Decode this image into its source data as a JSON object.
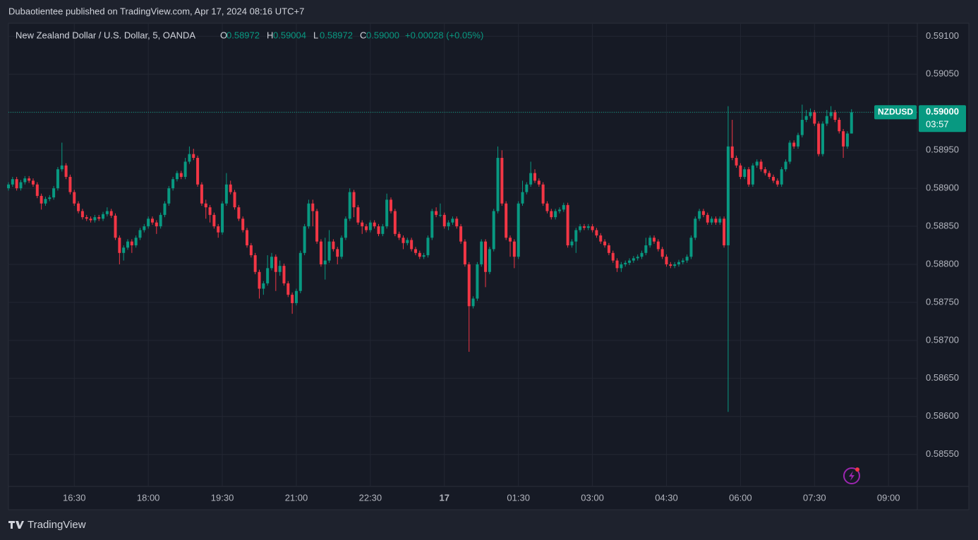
{
  "header": {
    "published": "Dubaotientee published on TradingView.com, Apr 17, 2024 08:16 UTC+7"
  },
  "footer": {
    "brand": "TradingView"
  },
  "chart_data": {
    "type": "candlestick",
    "title": "New Zealand Dollar / U.S. Dollar, 5, OANDA",
    "ohlc_legend": [
      {
        "key": "O",
        "value": "0.58972"
      },
      {
        "key": "H",
        "value": "0.59004"
      },
      {
        "key": "L",
        "value": "0.58972"
      },
      {
        "key": "C",
        "value": "0.59000"
      }
    ],
    "change": "+0.00028 (+0.05%)",
    "symbol": "NZDUSD",
    "last_price": {
      "value": 0.59,
      "label": "0.59000"
    },
    "countdown": "03:57",
    "up_color": "#089981",
    "down_color": "#f23645",
    "grid": true,
    "ylim": [
      0.58508,
      0.59117
    ],
    "yticks": [
      {
        "value": 0.591,
        "label": "0.59100"
      },
      {
        "value": 0.5905,
        "label": "0.59050"
      },
      {
        "value": 0.59,
        "label": "0.59000"
      },
      {
        "value": 0.5895,
        "label": "0.58950"
      },
      {
        "value": 0.589,
        "label": "0.58900"
      },
      {
        "value": 0.5885,
        "label": "0.58850"
      },
      {
        "value": 0.588,
        "label": "0.58800"
      },
      {
        "value": 0.5875,
        "label": "0.58750"
      },
      {
        "value": 0.587,
        "label": "0.58700"
      },
      {
        "value": 0.5865,
        "label": "0.58650"
      },
      {
        "value": 0.586,
        "label": "0.58600"
      },
      {
        "value": 0.5855,
        "label": "0.58550"
      }
    ],
    "xlim": [
      0,
      221
    ],
    "xticks": [
      {
        "value": 16,
        "label": "16:30"
      },
      {
        "value": 34,
        "label": "18:00"
      },
      {
        "value": 52,
        "label": "19:30"
      },
      {
        "value": 70,
        "label": "21:00"
      },
      {
        "value": 88,
        "label": "22:30"
      },
      {
        "value": 106,
        "label": "17"
      },
      {
        "value": 124,
        "label": "01:30"
      },
      {
        "value": 142,
        "label": "03:00"
      },
      {
        "value": 160,
        "label": "04:30"
      },
      {
        "value": 178,
        "label": "06:00"
      },
      {
        "value": 196,
        "label": "07:30"
      },
      {
        "value": 214,
        "label": "09:00"
      }
    ],
    "candles": [
      [
        0.589,
        0.58908,
        0.58897,
        0.58905
      ],
      [
        0.58905,
        0.58915,
        0.58902,
        0.58912
      ],
      [
        0.58912,
        0.58915,
        0.58897,
        0.589
      ],
      [
        0.589,
        0.58911,
        0.58897,
        0.58908
      ],
      [
        0.58908,
        0.58916,
        0.58905,
        0.58913
      ],
      [
        0.58913,
        0.58916,
        0.58907,
        0.5891
      ],
      [
        0.5891,
        0.58913,
        0.58902,
        0.58905
      ],
      [
        0.58905,
        0.58908,
        0.58887,
        0.5889
      ],
      [
        0.5889,
        0.58893,
        0.58872,
        0.5888
      ],
      [
        0.5888,
        0.58889,
        0.58877,
        0.58886
      ],
      [
        0.58886,
        0.58891,
        0.58883,
        0.58888
      ],
      [
        0.58888,
        0.58903,
        0.58885,
        0.589
      ],
      [
        0.589,
        0.58928,
        0.58897,
        0.58925
      ],
      [
        0.58925,
        0.5896,
        0.58922,
        0.5893
      ],
      [
        0.5893,
        0.58933,
        0.58912,
        0.58915
      ],
      [
        0.58915,
        0.58918,
        0.58892,
        0.58895
      ],
      [
        0.58895,
        0.58898,
        0.58877,
        0.5888
      ],
      [
        0.5888,
        0.58883,
        0.58867,
        0.5887
      ],
      [
        0.5887,
        0.58873,
        0.58859,
        0.58862
      ],
      [
        0.58862,
        0.58865,
        0.58857,
        0.5886
      ],
      [
        0.5886,
        0.58863,
        0.58855,
        0.58858
      ],
      [
        0.58858,
        0.58865,
        0.58855,
        0.58862
      ],
      [
        0.58862,
        0.58865,
        0.58857,
        0.5886
      ],
      [
        0.5886,
        0.58869,
        0.58857,
        0.58866
      ],
      [
        0.58866,
        0.58875,
        0.58863,
        0.5887
      ],
      [
        0.5887,
        0.58873,
        0.58861,
        0.58864
      ],
      [
        0.58864,
        0.58867,
        0.58832,
        0.58835
      ],
      [
        0.58835,
        0.58838,
        0.588,
        0.58815
      ],
      [
        0.58815,
        0.58825,
        0.58805,
        0.58822
      ],
      [
        0.58822,
        0.58833,
        0.58819,
        0.5883
      ],
      [
        0.5883,
        0.58833,
        0.58815,
        0.58825
      ],
      [
        0.58825,
        0.58838,
        0.58822,
        0.58835
      ],
      [
        0.58835,
        0.58848,
        0.58832,
        0.58845
      ],
      [
        0.58845,
        0.58853,
        0.58842,
        0.5885
      ],
      [
        0.5885,
        0.58863,
        0.58847,
        0.5886
      ],
      [
        0.5886,
        0.58863,
        0.58852,
        0.58855
      ],
      [
        0.58855,
        0.58858,
        0.5884,
        0.5885
      ],
      [
        0.5885,
        0.58868,
        0.58847,
        0.58865
      ],
      [
        0.58865,
        0.58883,
        0.58862,
        0.5888
      ],
      [
        0.5888,
        0.58903,
        0.58877,
        0.589
      ],
      [
        0.589,
        0.58915,
        0.58897,
        0.58912
      ],
      [
        0.58912,
        0.58923,
        0.58909,
        0.5892
      ],
      [
        0.5892,
        0.58923,
        0.58912,
        0.58915
      ],
      [
        0.58915,
        0.5894,
        0.58912,
        0.58935
      ],
      [
        0.58935,
        0.58955,
        0.58932,
        0.58945
      ],
      [
        0.58945,
        0.58952,
        0.58937,
        0.5894
      ],
      [
        0.5894,
        0.58943,
        0.58902,
        0.58905
      ],
      [
        0.58905,
        0.58908,
        0.58877,
        0.5888
      ],
      [
        0.5888,
        0.58885,
        0.5886,
        0.58875
      ],
      [
        0.58875,
        0.58878,
        0.58855,
        0.58865
      ],
      [
        0.58865,
        0.58868,
        0.58847,
        0.5885
      ],
      [
        0.5885,
        0.58853,
        0.58835,
        0.58842
      ],
      [
        0.58842,
        0.58883,
        0.58839,
        0.5888
      ],
      [
        0.5888,
        0.5892,
        0.58877,
        0.58905
      ],
      [
        0.58905,
        0.5891,
        0.58892,
        0.58895
      ],
      [
        0.58895,
        0.58898,
        0.58872,
        0.58875
      ],
      [
        0.58875,
        0.58878,
        0.58857,
        0.5886
      ],
      [
        0.5886,
        0.58863,
        0.58842,
        0.58845
      ],
      [
        0.58845,
        0.58848,
        0.58822,
        0.58825
      ],
      [
        0.58825,
        0.58828,
        0.58809,
        0.58812
      ],
      [
        0.58812,
        0.58815,
        0.58787,
        0.5879
      ],
      [
        0.5879,
        0.58793,
        0.58755,
        0.58768
      ],
      [
        0.58768,
        0.58778,
        0.5876,
        0.58775
      ],
      [
        0.58775,
        0.58812,
        0.58772,
        0.58795
      ],
      [
        0.58795,
        0.58815,
        0.58792,
        0.5881
      ],
      [
        0.5881,
        0.58813,
        0.58765,
        0.5879
      ],
      [
        0.5879,
        0.58805,
        0.58785,
        0.58798
      ],
      [
        0.58798,
        0.58801,
        0.58772,
        0.58775
      ],
      [
        0.58775,
        0.58778,
        0.58757,
        0.5876
      ],
      [
        0.5876,
        0.58763,
        0.58735,
        0.58749
      ],
      [
        0.58749,
        0.58768,
        0.58746,
        0.58765
      ],
      [
        0.58765,
        0.58818,
        0.58762,
        0.58815
      ],
      [
        0.58815,
        0.58853,
        0.58812,
        0.5885
      ],
      [
        0.5885,
        0.58885,
        0.58847,
        0.5888
      ],
      [
        0.5888,
        0.58885,
        0.5885,
        0.5887
      ],
      [
        0.5887,
        0.58873,
        0.58827,
        0.5883
      ],
      [
        0.5883,
        0.58833,
        0.58797,
        0.588
      ],
      [
        0.588,
        0.58835,
        0.5878,
        0.58805
      ],
      [
        0.58805,
        0.58845,
        0.58802,
        0.5883
      ],
      [
        0.5883,
        0.58833,
        0.58817,
        0.5882
      ],
      [
        0.5882,
        0.58823,
        0.588,
        0.5881
      ],
      [
        0.5881,
        0.58838,
        0.58807,
        0.58835
      ],
      [
        0.58835,
        0.58863,
        0.58832,
        0.5886
      ],
      [
        0.5886,
        0.589,
        0.58857,
        0.58895
      ],
      [
        0.58895,
        0.58898,
        0.58862,
        0.58875
      ],
      [
        0.58875,
        0.58878,
        0.58852,
        0.58855
      ],
      [
        0.58855,
        0.58858,
        0.5884,
        0.5885
      ],
      [
        0.5885,
        0.58853,
        0.58842,
        0.58845
      ],
      [
        0.58845,
        0.58858,
        0.58842,
        0.58855
      ],
      [
        0.58855,
        0.58858,
        0.58847,
        0.5885
      ],
      [
        0.5885,
        0.58853,
        0.58837,
        0.5884
      ],
      [
        0.5884,
        0.58853,
        0.58837,
        0.5885
      ],
      [
        0.5885,
        0.58893,
        0.58847,
        0.58885
      ],
      [
        0.58885,
        0.58888,
        0.58867,
        0.5887
      ],
      [
        0.5887,
        0.58873,
        0.58837,
        0.5884
      ],
      [
        0.5884,
        0.58843,
        0.58832,
        0.58835
      ],
      [
        0.58835,
        0.58838,
        0.5882,
        0.58828
      ],
      [
        0.58828,
        0.58835,
        0.58825,
        0.58832
      ],
      [
        0.58832,
        0.58835,
        0.58817,
        0.5882
      ],
      [
        0.5882,
        0.58823,
        0.58812,
        0.58815
      ],
      [
        0.58815,
        0.58818,
        0.58807,
        0.5881
      ],
      [
        0.5881,
        0.58815,
        0.58807,
        0.58812
      ],
      [
        0.58812,
        0.58838,
        0.58809,
        0.58835
      ],
      [
        0.58835,
        0.58873,
        0.58832,
        0.5887
      ],
      [
        0.5887,
        0.58875,
        0.58862,
        0.58865
      ],
      [
        0.58865,
        0.5888,
        0.58862,
        0.58865
      ],
      [
        0.58865,
        0.58868,
        0.58847,
        0.5885
      ],
      [
        0.5885,
        0.58858,
        0.58845,
        0.58855
      ],
      [
        0.58855,
        0.58863,
        0.58852,
        0.5886
      ],
      [
        0.5886,
        0.58863,
        0.58847,
        0.5885
      ],
      [
        0.5885,
        0.58853,
        0.58827,
        0.5883
      ],
      [
        0.5883,
        0.58833,
        0.58797,
        0.588
      ],
      [
        0.588,
        0.58803,
        0.58685,
        0.58745
      ],
      [
        0.58745,
        0.58758,
        0.58742,
        0.58755
      ],
      [
        0.58755,
        0.58803,
        0.58752,
        0.588
      ],
      [
        0.588,
        0.58833,
        0.58797,
        0.5883
      ],
      [
        0.5883,
        0.58833,
        0.5877,
        0.5879
      ],
      [
        0.5879,
        0.58823,
        0.58787,
        0.5882
      ],
      [
        0.5882,
        0.58873,
        0.58817,
        0.5887
      ],
      [
        0.5887,
        0.58955,
        0.58867,
        0.5894
      ],
      [
        0.5894,
        0.5895,
        0.58877,
        0.5888
      ],
      [
        0.5888,
        0.58883,
        0.58832,
        0.58835
      ],
      [
        0.58835,
        0.58838,
        0.5881,
        0.5883
      ],
      [
        0.5883,
        0.58833,
        0.58795,
        0.5881
      ],
      [
        0.5881,
        0.58883,
        0.58807,
        0.5888
      ],
      [
        0.5888,
        0.5891,
        0.58877,
        0.58895
      ],
      [
        0.58895,
        0.58908,
        0.58892,
        0.58905
      ],
      [
        0.58905,
        0.58935,
        0.58902,
        0.5892
      ],
      [
        0.5892,
        0.58925,
        0.58907,
        0.5891
      ],
      [
        0.5891,
        0.58913,
        0.58902,
        0.58905
      ],
      [
        0.58905,
        0.58908,
        0.58877,
        0.5888
      ],
      [
        0.5888,
        0.58883,
        0.58867,
        0.5887
      ],
      [
        0.5887,
        0.58873,
        0.58859,
        0.58862
      ],
      [
        0.58862,
        0.58873,
        0.58859,
        0.5887
      ],
      [
        0.5887,
        0.58875,
        0.58867,
        0.58872
      ],
      [
        0.58872,
        0.58881,
        0.58869,
        0.58878
      ],
      [
        0.58878,
        0.58881,
        0.58822,
        0.58825
      ],
      [
        0.58825,
        0.58833,
        0.58822,
        0.5883
      ],
      [
        0.5883,
        0.58848,
        0.58815,
        0.58845
      ],
      [
        0.58845,
        0.58853,
        0.58842,
        0.5885
      ],
      [
        0.5885,
        0.58853,
        0.58845,
        0.58848
      ],
      [
        0.58848,
        0.58853,
        0.58845,
        0.5885
      ],
      [
        0.5885,
        0.58853,
        0.58842,
        0.58845
      ],
      [
        0.58845,
        0.58848,
        0.58835,
        0.58838
      ],
      [
        0.58838,
        0.58841,
        0.58827,
        0.5883
      ],
      [
        0.5883,
        0.58833,
        0.58822,
        0.58825
      ],
      [
        0.58825,
        0.58828,
        0.58812,
        0.58815
      ],
      [
        0.58815,
        0.58818,
        0.58802,
        0.58805
      ],
      [
        0.58805,
        0.58808,
        0.5879,
        0.58795
      ],
      [
        0.58795,
        0.58803,
        0.5879,
        0.588
      ],
      [
        0.588,
        0.58805,
        0.58797,
        0.58802
      ],
      [
        0.58802,
        0.58808,
        0.58799,
        0.58805
      ],
      [
        0.58805,
        0.58811,
        0.58802,
        0.58808
      ],
      [
        0.58808,
        0.58813,
        0.58805,
        0.5881
      ],
      [
        0.5881,
        0.58818,
        0.58807,
        0.58815
      ],
      [
        0.58815,
        0.58835,
        0.58812,
        0.58825
      ],
      [
        0.58825,
        0.58838,
        0.58822,
        0.58835
      ],
      [
        0.58835,
        0.58838,
        0.58827,
        0.5883
      ],
      [
        0.5883,
        0.58833,
        0.58817,
        0.5882
      ],
      [
        0.5882,
        0.58823,
        0.58807,
        0.5881
      ],
      [
        0.5881,
        0.58813,
        0.58797,
        0.588
      ],
      [
        0.588,
        0.58803,
        0.58795,
        0.58798
      ],
      [
        0.58798,
        0.58803,
        0.58795,
        0.588
      ],
      [
        0.588,
        0.58806,
        0.58797,
        0.58803
      ],
      [
        0.58803,
        0.58808,
        0.588,
        0.58805
      ],
      [
        0.58805,
        0.58813,
        0.58802,
        0.5881
      ],
      [
        0.5881,
        0.58838,
        0.58807,
        0.58835
      ],
      [
        0.58835,
        0.58863,
        0.58832,
        0.5886
      ],
      [
        0.5886,
        0.58873,
        0.58857,
        0.5887
      ],
      [
        0.5887,
        0.58873,
        0.58862,
        0.58865
      ],
      [
        0.58865,
        0.58868,
        0.58852,
        0.58855
      ],
      [
        0.58855,
        0.58863,
        0.58852,
        0.5886
      ],
      [
        0.5886,
        0.58863,
        0.58852,
        0.58855
      ],
      [
        0.58855,
        0.58863,
        0.58852,
        0.5886
      ],
      [
        0.5886,
        0.58863,
        0.58822,
        0.58825
      ],
      [
        0.58825,
        0.59008,
        0.58606,
        0.58955
      ],
      [
        0.58955,
        0.5899,
        0.58937,
        0.5894
      ],
      [
        0.5894,
        0.58943,
        0.58927,
        0.5893
      ],
      [
        0.5893,
        0.58933,
        0.58912,
        0.58915
      ],
      [
        0.58915,
        0.58928,
        0.58912,
        0.58925
      ],
      [
        0.58925,
        0.58928,
        0.58902,
        0.58905
      ],
      [
        0.58905,
        0.58933,
        0.58902,
        0.5893
      ],
      [
        0.5893,
        0.58938,
        0.58927,
        0.58935
      ],
      [
        0.58935,
        0.58938,
        0.58922,
        0.58925
      ],
      [
        0.58925,
        0.58928,
        0.58917,
        0.5892
      ],
      [
        0.5892,
        0.58923,
        0.58912,
        0.58915
      ],
      [
        0.58915,
        0.58918,
        0.58907,
        0.5891
      ],
      [
        0.5891,
        0.58913,
        0.58902,
        0.58905
      ],
      [
        0.58905,
        0.58928,
        0.58902,
        0.58925
      ],
      [
        0.58925,
        0.58938,
        0.58922,
        0.58935
      ],
      [
        0.58935,
        0.58963,
        0.58932,
        0.5896
      ],
      [
        0.5896,
        0.58963,
        0.58952,
        0.58955
      ],
      [
        0.58955,
        0.58973,
        0.58952,
        0.5897
      ],
      [
        0.5897,
        0.5901,
        0.58967,
        0.5899
      ],
      [
        0.5899,
        0.59003,
        0.58987,
        0.58995
      ],
      [
        0.58995,
        0.59005,
        0.58992,
        0.59
      ],
      [
        0.59,
        0.59003,
        0.58982,
        0.58985
      ],
      [
        0.58985,
        0.58988,
        0.58942,
        0.58945
      ],
      [
        0.58945,
        0.58988,
        0.58942,
        0.58985
      ],
      [
        0.58985,
        0.59003,
        0.58982,
        0.58995
      ],
      [
        0.58995,
        0.59008,
        0.58992,
        0.59
      ],
      [
        0.59,
        0.59003,
        0.58987,
        0.5899
      ],
      [
        0.5899,
        0.58993,
        0.58972,
        0.58975
      ],
      [
        0.58975,
        0.58978,
        0.5894,
        0.58955
      ],
      [
        0.58955,
        0.58975,
        0.58952,
        0.58972
      ],
      [
        0.58972,
        0.59004,
        0.58972,
        0.59
      ]
    ]
  }
}
